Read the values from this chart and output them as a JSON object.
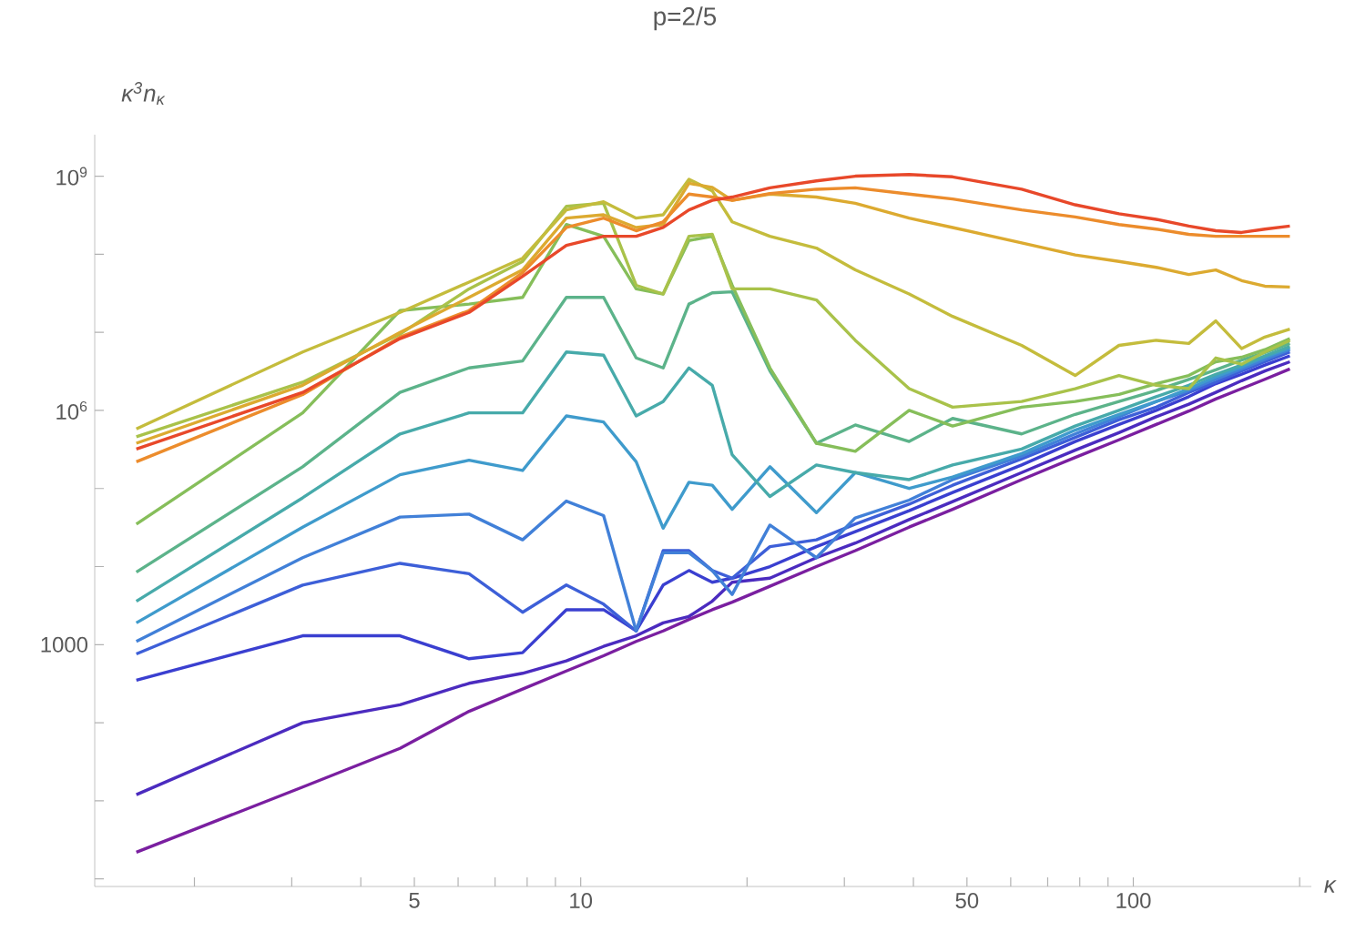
{
  "chart_data": {
    "type": "line",
    "title": "p=2/5",
    "xlabel": "κ",
    "ylabel": "κ$^{3}$n$_{κ}$",
    "log": "xy",
    "xlim": [
      1.32,
      210
    ],
    "ylim": [
      0.8,
      3400000000
    ],
    "xticks": [
      {
        "value": 2,
        "label": null
      },
      {
        "value": 3,
        "label": null
      },
      {
        "value": 4,
        "label": null
      },
      5,
      {
        "value": 6,
        "label": null
      },
      {
        "value": 7,
        "label": null
      },
      {
        "value": 8,
        "label": null
      },
      {
        "value": 9,
        "label": null
      },
      10,
      {
        "value": 20,
        "label": null
      },
      {
        "value": 30,
        "label": null
      },
      {
        "value": 40,
        "label": null
      },
      50,
      {
        "value": 60,
        "label": null
      },
      {
        "value": 70,
        "label": null
      },
      {
        "value": 80,
        "label": null
      },
      {
        "value": 90,
        "label": null
      },
      100,
      {
        "value": 200,
        "label": null
      }
    ],
    "yticks": [
      {
        "value": 1,
        "label": null
      },
      {
        "value": 10,
        "label": null
      },
      {
        "value": 100,
        "label": null
      },
      1000,
      {
        "value": 10000,
        "label": null
      },
      {
        "value": 100000,
        "label": null
      },
      {
        "value": 1000000,
        "label": "10$^{6}$"
      },
      {
        "value": 10000000,
        "label": null
      },
      {
        "value": 100000000,
        "label": null
      },
      {
        "value": 1000000000,
        "label": "10$^{9}$"
      }
    ],
    "x": [
      1.57,
      3.14,
      4.71,
      6.28,
      7.85,
      9.42,
      11.0,
      12.6,
      14.1,
      15.7,
      17.3,
      18.8,
      22.0,
      26.7,
      31.4,
      39.3,
      47.1,
      62.8,
      78.5,
      94.2,
      110,
      126,
      141,
      157,
      173,
      192
    ],
    "series": [
      {
        "color": "#7a1fa0",
        "values": [
          2.2,
          15,
          47,
          140,
          270,
          460,
          720,
          1100,
          1500,
          2100,
          2800,
          3500,
          5600,
          10000,
          16000,
          32000,
          54000,
          130000,
          250000,
          420000,
          660000,
          980000,
          1400000,
          1900000,
          2500000,
          3400000
        ]
      },
      {
        "color": "#4b2bbf",
        "values": [
          12,
          100,
          170,
          320,
          430,
          620,
          950,
          1300,
          1900,
          2300,
          3600,
          6300,
          7100,
          13000,
          20000,
          40000,
          68000,
          160000,
          310000,
          520000,
          830000,
          1200000,
          1700000,
          2400000,
          3200000,
          4200000
        ]
      },
      {
        "color": "#3a3fd0",
        "values": [
          350,
          1300,
          1300,
          660,
          790,
          2800,
          2800,
          1500,
          5800,
          8900,
          6300,
          7100,
          10000,
          18000,
          28000,
          52000,
          89000,
          200000,
          400000,
          660000,
          1000000,
          1500000,
          2200000,
          2900000,
          3800000,
          5000000
        ]
      },
      {
        "color": "#3d5fd8",
        "values": [
          760,
          5800,
          11000,
          8100,
          2600,
          5800,
          3300,
          1500,
          16000,
          16000,
          8900,
          7100,
          18000,
          22000,
          35000,
          63000,
          110000,
          240000,
          450000,
          760000,
          1100000,
          1700000,
          2300000,
          3200000,
          4200000,
          5600000
        ]
      },
      {
        "color": "#4180d8",
        "values": [
          1100,
          13000,
          43000,
          47000,
          22000,
          69000,
          45000,
          1500,
          15000,
          15000,
          8900,
          4400,
          34000,
          13000,
          42000,
          71000,
          130000,
          260000,
          500000,
          830000,
          1300000,
          1800000,
          2500000,
          3400000,
          4500000,
          6000000
        ]
      },
      {
        "color": "#3f9bcc",
        "values": [
          1900,
          32000,
          150000,
          230000,
          170000,
          850000,
          710000,
          220000,
          31000,
          120000,
          110000,
          54000,
          190000,
          49000,
          160000,
          100000,
          140000,
          280000,
          560000,
          890000,
          1300000,
          1900000,
          2700000,
          3600000,
          4800000,
          6300000
        ]
      },
      {
        "color": "#47aaaa",
        "values": [
          3600,
          76000,
          500000,
          930000,
          930000,
          5600000,
          5100000,
          850000,
          1300000,
          3500000,
          2100000,
          270000,
          79000,
          200000,
          160000,
          130000,
          200000,
          320000,
          630000,
          1000000,
          1500000,
          2100000,
          2900000,
          3800000,
          5000000,
          6600000
        ]
      },
      {
        "color": "#5cb38a",
        "values": [
          8500,
          190000,
          1700000,
          3500000,
          4300000,
          28000000,
          28000000,
          4700000,
          3500000,
          23000000,
          32000000,
          33000000,
          3200000,
          380000,
          650000,
          400000,
          790000,
          500000,
          890000,
          1300000,
          1800000,
          2500000,
          3300000,
          4400000,
          5500000,
          7200000
        ]
      },
      {
        "color": "#86be5a",
        "values": [
          35000,
          930000,
          19000000,
          23000000,
          28000000,
          240000000,
          170000000,
          36000000,
          31000000,
          150000000,
          170000000,
          40000000,
          3500000,
          380000,
          300000,
          1000000,
          630000,
          1100000,
          1300000,
          1600000,
          2200000,
          2800000,
          4200000,
          4800000,
          6000000,
          8300000
        ]
      },
      {
        "color": "#a9c24a",
        "values": [
          460000,
          2300000,
          9500000,
          36000000,
          81000000,
          410000000,
          450000000,
          40000000,
          31000000,
          170000000,
          180000000,
          36000000,
          36000000,
          26000000,
          7900000,
          1900000,
          1100000,
          1300000,
          1900000,
          2800000,
          2100000,
          1900000,
          4700000,
          3900000,
          5600000,
          7900000
        ]
      },
      {
        "color": "#c4bc3c",
        "values": [
          580000,
          5600000,
          18000000,
          44000000,
          89000000,
          370000000,
          470000000,
          290000000,
          320000000,
          910000000,
          650000000,
          260000000,
          170000000,
          120000000,
          63000000,
          31000000,
          16000000,
          6800000,
          2800000,
          6800000,
          7900000,
          7200000,
          14000000,
          6200000,
          8700000,
          11000000
        ]
      },
      {
        "color": "#dcaa30",
        "values": [
          380000,
          2100000,
          10000000,
          28000000,
          63000000,
          290000000,
          320000000,
          220000000,
          240000000,
          810000000,
          720000000,
          490000000,
          590000000,
          540000000,
          450000000,
          290000000,
          220000000,
          140000000,
          98000000,
          81000000,
          68000000,
          55000000,
          63000000,
          46000000,
          39000000,
          38000000
        ]
      },
      {
        "color": "#ec8c2c",
        "values": [
          220000,
          1600000,
          8700000,
          19000000,
          58000000,
          220000000,
          290000000,
          200000000,
          260000000,
          590000000,
          540000000,
          490000000,
          600000000,
          680000000,
          710000000,
          590000000,
          510000000,
          370000000,
          300000000,
          240000000,
          210000000,
          180000000,
          170000000,
          170000000,
          170000000,
          170000000
        ]
      },
      {
        "color": "#e8482a",
        "values": [
          320000,
          1700000,
          8300000,
          18000000,
          52000000,
          130000000,
          170000000,
          170000000,
          220000000,
          370000000,
          490000000,
          540000000,
          710000000,
          870000000,
          1000000000,
          1050000000,
          980000000,
          680000000,
          430000000,
          330000000,
          280000000,
          230000000,
          200000000,
          190000000,
          210000000,
          230000000
        ]
      }
    ]
  }
}
